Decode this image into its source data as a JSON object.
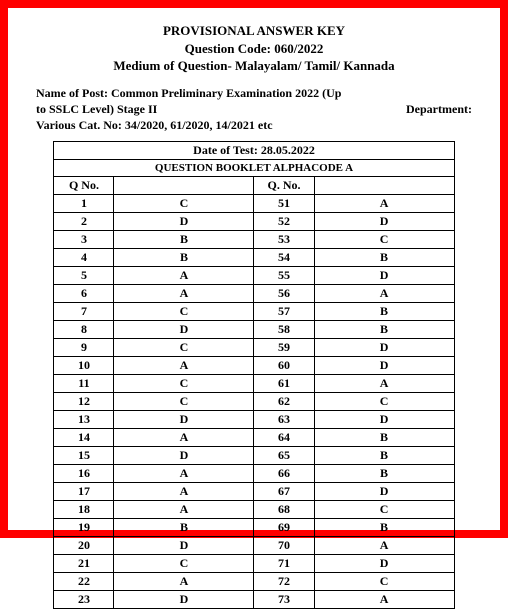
{
  "header": {
    "title1": "PROVISIONAL  ANSWER KEY",
    "title2": "Question Code: 060/2022",
    "title3": "Medium of Question- Malayalam/ Tamil/ Kannada",
    "post1_left": "Name of Post: Common Preliminary Examination 2022 (Up",
    "post2_left": "to SSLC Level) Stage II",
    "post2_right": "Department:",
    "post3": "Various Cat. No: 34/2020, 61/2020, 14/2021 etc"
  },
  "table": {
    "date_header": "Date of Test: 28.05.2022",
    "booklet_header": "QUESTION BOOKLET ALPHACODE A",
    "col_qno": "Q No.",
    "col_qno2": "Q. No.",
    "rows": [
      {
        "q1": "1",
        "a1": "C",
        "q2": "51",
        "a2": "A"
      },
      {
        "q1": "2",
        "a1": "D",
        "q2": "52",
        "a2": "D"
      },
      {
        "q1": "3",
        "a1": "B",
        "q2": "53",
        "a2": "C"
      },
      {
        "q1": "4",
        "a1": "B",
        "q2": "54",
        "a2": "B"
      },
      {
        "q1": "5",
        "a1": "A",
        "q2": "55",
        "a2": "D"
      },
      {
        "q1": "6",
        "a1": "A",
        "q2": "56",
        "a2": "A"
      },
      {
        "q1": "7",
        "a1": "C",
        "q2": "57",
        "a2": "B"
      },
      {
        "q1": "8",
        "a1": "D",
        "q2": "58",
        "a2": "B"
      },
      {
        "q1": "9",
        "a1": "C",
        "q2": "59",
        "a2": "D"
      },
      {
        "q1": "10",
        "a1": "A",
        "q2": "60",
        "a2": "D"
      },
      {
        "q1": "11",
        "a1": "C",
        "q2": "61",
        "a2": "A"
      },
      {
        "q1": "12",
        "a1": "C",
        "q2": "62",
        "a2": "C"
      },
      {
        "q1": "13",
        "a1": "D",
        "q2": "63",
        "a2": "D"
      },
      {
        "q1": "14",
        "a1": "A",
        "q2": "64",
        "a2": "B"
      },
      {
        "q1": "15",
        "a1": "D",
        "q2": "65",
        "a2": "B"
      },
      {
        "q1": "16",
        "a1": "A",
        "q2": "66",
        "a2": "B"
      },
      {
        "q1": "17",
        "a1": "A",
        "q2": "67",
        "a2": "D"
      },
      {
        "q1": "18",
        "a1": "A",
        "q2": "68",
        "a2": "C"
      },
      {
        "q1": "19",
        "a1": "B",
        "q2": "69",
        "a2": "B"
      },
      {
        "q1": "20",
        "a1": "D",
        "q2": "70",
        "a2": "A"
      },
      {
        "q1": "21",
        "a1": "C",
        "q2": "71",
        "a2": "D"
      },
      {
        "q1": "22",
        "a1": "A",
        "q2": "72",
        "a2": "C"
      },
      {
        "q1": "23",
        "a1": "D",
        "q2": "73",
        "a2": "A"
      }
    ]
  }
}
